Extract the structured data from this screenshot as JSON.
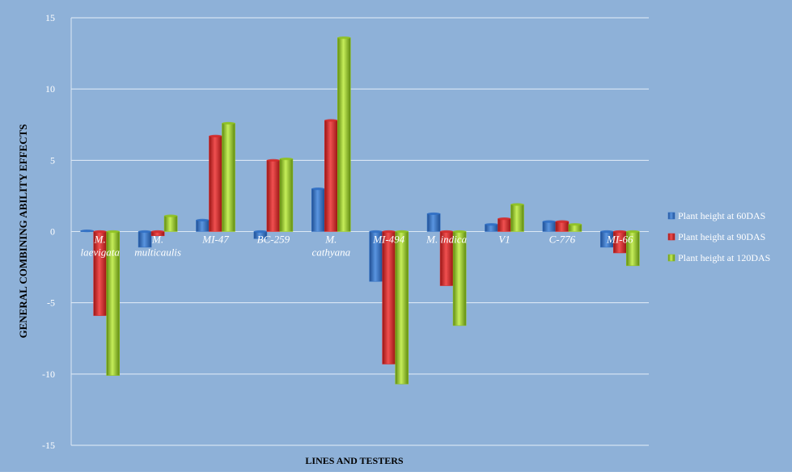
{
  "chart_data": {
    "type": "bar",
    "title": "",
    "xlabel": "LINES AND TESTERS",
    "ylabel": "GENERAL COMBINING ABILITY EFFECTS",
    "ylim": [
      -15,
      15
    ],
    "yticks": [
      "15",
      "10",
      "5",
      "0",
      "-5",
      "-10",
      "-15"
    ],
    "grid": true,
    "legend_position": "right",
    "categories": [
      [
        "M.",
        "laevigata"
      ],
      [
        "M.",
        "multicaulis"
      ],
      [
        "MI-47"
      ],
      [
        "BC-259"
      ],
      [
        "M.",
        "cathyana"
      ],
      [
        "MI-494"
      ],
      [
        "M.  indica"
      ],
      [
        "V1"
      ],
      [
        "C-776"
      ],
      [
        "MI-66"
      ]
    ],
    "series": [
      {
        "name": "Plant height at 60DAS",
        "color": "#2f6fc4",
        "values": [
          0.05,
          -1.1,
          0.8,
          -0.5,
          3.0,
          -3.5,
          1.25,
          0.5,
          0.7,
          -1.1
        ]
      },
      {
        "name": "Plant height at 90DAS",
        "color": "#d42b2b",
        "values": [
          -5.9,
          -0.3,
          6.7,
          5.0,
          7.8,
          -9.3,
          -3.8,
          0.9,
          0.7,
          -1.5
        ]
      },
      {
        "name": "Plant height at 120DAS",
        "color": "#8fc21f",
        "values": [
          -10.1,
          1.1,
          7.6,
          5.1,
          13.6,
          -10.7,
          -6.6,
          1.9,
          0.5,
          -2.4
        ]
      }
    ],
    "colors": {
      "background": "#8eb1d8",
      "gridline": "#e4eef8",
      "axis": "#dce8f4",
      "tick_text": "#ffffff",
      "label_text": "#000000"
    }
  }
}
